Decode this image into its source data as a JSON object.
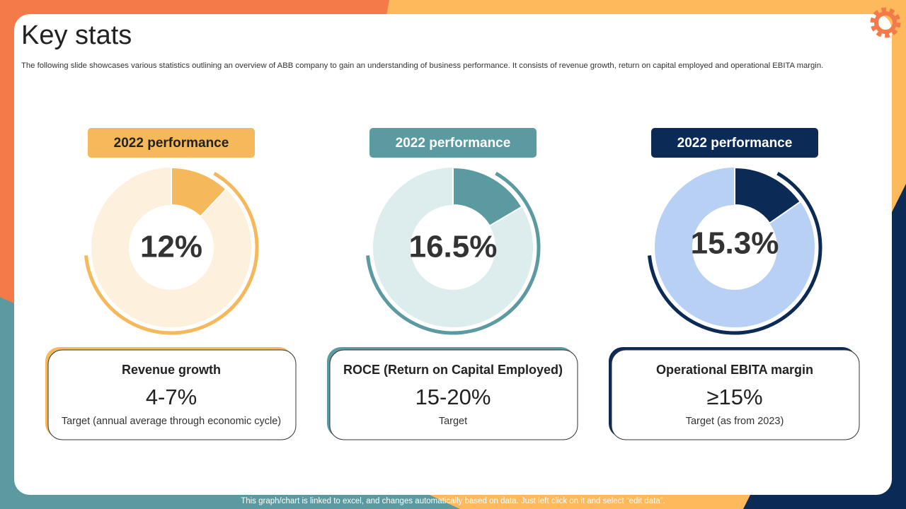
{
  "header": {
    "title": "Key stats",
    "description": "The following slide showcases various statistics outlining an overview of ABB company to gain an understanding of business performance. It consists of revenue growth, return on capital employed and operational EBITA margin."
  },
  "chart_data": [
    {
      "type": "donut",
      "title": "2022 performance",
      "values": [
        12
      ],
      "value_labels": [
        "12%"
      ],
      "color": "#f5b85a",
      "track_color": "#fdf0dc",
      "title_color": "#222222"
    },
    {
      "type": "donut",
      "title": "2022 performance",
      "values": [
        16.5
      ],
      "value_labels": [
        "16.5%"
      ],
      "color": "#5a9aa0",
      "track_color": "#ddecec",
      "title_color": "#ffffff"
    },
    {
      "type": "donut",
      "title": "2022 performance",
      "values": [
        15.3
      ],
      "value_labels": [
        "15.3%"
      ],
      "color": "#0b2a55",
      "track_color": "#b7d0f3",
      "title_color": "#ffffff"
    }
  ],
  "cards": [
    {
      "title": "Revenue growth",
      "value": "4-7%",
      "note": "Target (annual average through economic cycle)"
    },
    {
      "title": "ROCE (Return on Capital Employed)",
      "value": "15-20%",
      "note": "Target"
    },
    {
      "title": "Operational EBITA margin",
      "value": "≥15%",
      "note": "Target (as from 2023)"
    }
  ],
  "footer": "This graph/chart is linked to excel, and changes automatically based on data. Just left click on it and select “edit data”."
}
